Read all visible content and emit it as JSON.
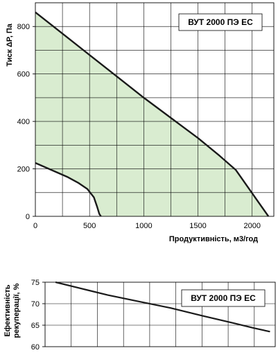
{
  "chart_data": [
    {
      "type": "line",
      "title": "",
      "label_box": "ВУТ 2000 ПЭ ЕС",
      "xlabel": "Продуктивність, м3/год",
      "ylabel": "Тиск ΔP, Па",
      "xlim": [
        0,
        2200
      ],
      "ylim": [
        0,
        900
      ],
      "xticks": [
        0,
        500,
        1000,
        1500,
        2000
      ],
      "yticks": [
        0,
        200,
        400,
        600,
        800
      ],
      "grid": true,
      "fill_color": "#d9ecd0",
      "line_color": "#1a1a1a",
      "series": [
        {
          "role": "max",
          "x": [
            0,
            250,
            500,
            750,
            1000,
            1250,
            1500,
            1700,
            1850,
            1950,
            2050,
            2150
          ],
          "y": [
            860,
            770,
            680,
            590,
            500,
            415,
            330,
            255,
            195,
            130,
            65,
            0
          ]
        },
        {
          "role": "min",
          "x": [
            0,
            150,
            300,
            400,
            480,
            540,
            570,
            590,
            605
          ],
          "y": [
            225,
            195,
            165,
            140,
            115,
            80,
            40,
            10,
            0
          ]
        }
      ]
    },
    {
      "type": "line",
      "title": "",
      "label_box": "ВУТ 2000 ПЭ ЕС",
      "xlabel": "",
      "ylabel": "Ефективність рекуперації, %",
      "ylabel_lines": [
        "Ефективність",
        "рекуперації, %"
      ],
      "xlim": [
        0,
        2200
      ],
      "ylim": [
        60,
        75
      ],
      "xticks": [],
      "yticks": [
        60,
        65,
        70,
        75
      ],
      "grid": true,
      "line_color": "#1a1a1a",
      "series": [
        {
          "x": [
            100,
            300,
            600,
            900,
            1200,
            1500,
            1800,
            2000,
            2150
          ],
          "y": [
            75,
            73.8,
            72,
            70.5,
            69,
            67.2,
            65.5,
            64.3,
            63.5
          ]
        }
      ]
    }
  ]
}
